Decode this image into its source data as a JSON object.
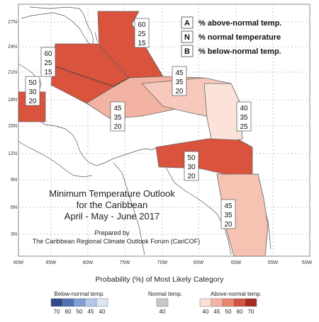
{
  "map": {
    "title_lines": [
      "Minimum Temperature Outlook",
      "for the Caribbean",
      "April - May - June 2017"
    ],
    "prepared_by_lines": [
      "Prepared by",
      "The Caribbean Regional Climate Outlook Forum (CariCOF)"
    ],
    "lat_labels": [
      "27N",
      "24N",
      "21N",
      "18N",
      "15N",
      "12N",
      "9N",
      "6N",
      "3N"
    ],
    "lon_labels": [
      "90W",
      "85W",
      "80W",
      "75W",
      "70W",
      "65W",
      "60W",
      "55W",
      "50W"
    ]
  },
  "key": {
    "rows": [
      {
        "letter": "A",
        "text": "% above-normal temp."
      },
      {
        "letter": "N",
        "text": "% normal temperature"
      },
      {
        "letter": "B",
        "text": "% below-normal temp."
      }
    ]
  },
  "regions": [
    {
      "id": "bahamas-north",
      "probs": [
        "60",
        "25",
        "15"
      ],
      "color": "#d9533d"
    },
    {
      "id": "cuba-bahamas-west",
      "probs": [
        "60",
        "25",
        "15"
      ],
      "color": "#d9533d"
    },
    {
      "id": "cayman-jamaica-west",
      "probs": [
        "50",
        "30",
        "20"
      ],
      "color": "#d9533d"
    },
    {
      "id": "jamaica-hispaniola",
      "probs": [
        "45",
        "35",
        "20"
      ],
      "color": "#f3b3a2"
    },
    {
      "id": "puerto-rico-band",
      "probs": [
        "45",
        "35",
        "20"
      ],
      "color": "#f7c9bc"
    },
    {
      "id": "lesser-antilles",
      "probs": [
        "40",
        "35",
        "25"
      ],
      "color": "#fbe3da"
    },
    {
      "id": "southern-caribbean",
      "probs": [
        "50",
        "30",
        "20"
      ],
      "color": "#d9533d"
    },
    {
      "id": "guianas",
      "probs": [
        "45",
        "35",
        "20"
      ],
      "color": "#f6c3b3"
    }
  ],
  "legend": {
    "title": "Probability (%) of Most Likely Category",
    "groups": [
      {
        "label": "Below-normal temp.",
        "colors": [
          "#2e4a8c",
          "#5073b8",
          "#7fa0d6",
          "#b3c8ea",
          "#dde7f6"
        ],
        "ticks": [
          "70",
          "60",
          "50",
          "45",
          "40"
        ]
      },
      {
        "label": "Normal temp.",
        "colors": [
          "#c8c8c8"
        ],
        "ticks": [
          "40"
        ]
      },
      {
        "label": "Above-normal temp.",
        "colors": [
          "#fbe0d8",
          "#f5b4a2",
          "#eb8770",
          "#d6533e",
          "#a82a22"
        ],
        "ticks": [
          "40",
          "45",
          "50",
          "60",
          "70"
        ]
      }
    ]
  }
}
